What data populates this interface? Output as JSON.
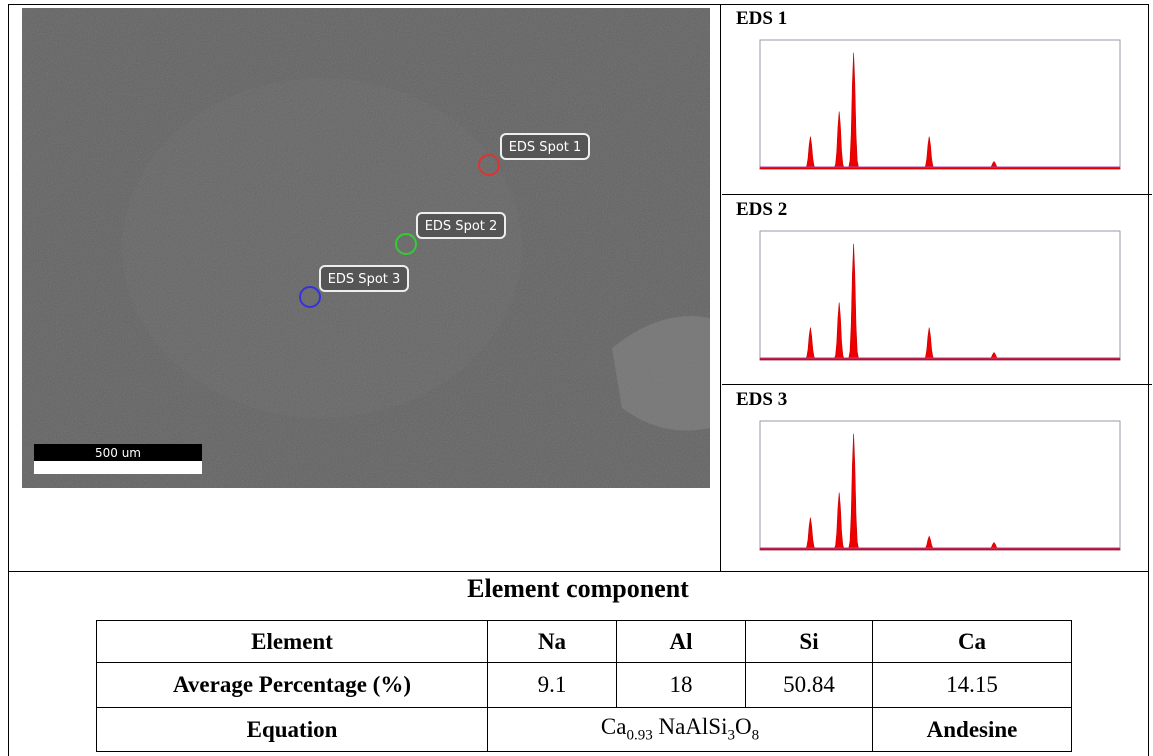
{
  "sem": {
    "spots": [
      "EDS Spot 1",
      "EDS Spot 2",
      "EDS Spot 3"
    ],
    "scale_bar": "500 um"
  },
  "eds_panels": [
    "EDS 1",
    "EDS 2",
    "EDS 3"
  ],
  "table": {
    "title": "Element component",
    "header": [
      "Element",
      "Na",
      "Al",
      "Si",
      "Ca"
    ],
    "rows": [
      [
        "Average Percentage (%)",
        "9.1",
        "18",
        "50.84",
        "14.15"
      ]
    ],
    "equation_label": "Equation",
    "equation_parts": [
      "Ca",
      "0.93",
      " NaAlSi",
      "3",
      "O",
      "8"
    ],
    "mineral": "Andesine"
  }
}
